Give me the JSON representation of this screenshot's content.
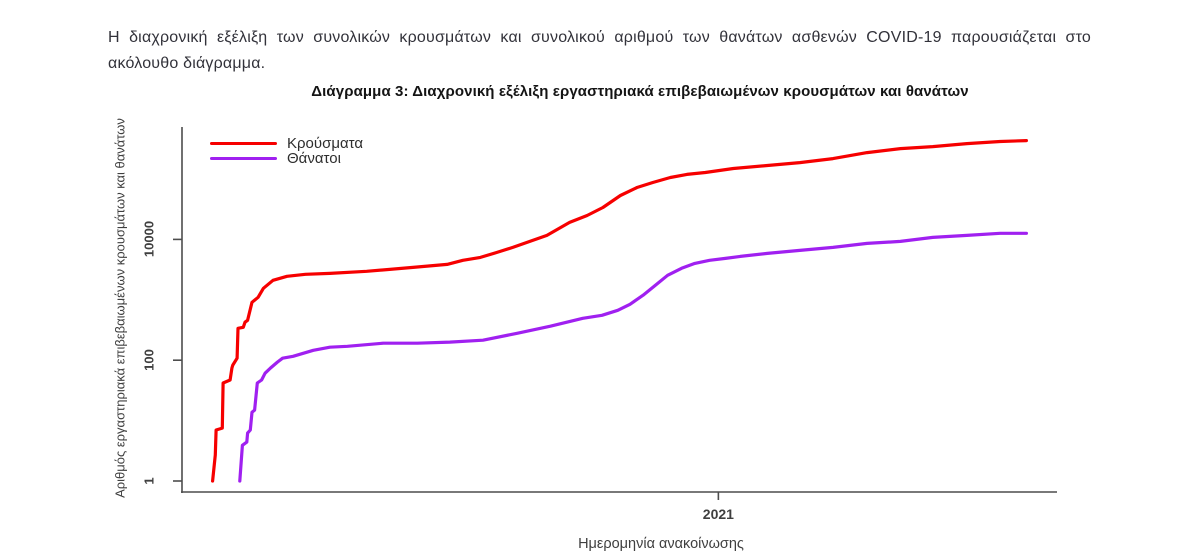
{
  "page": {
    "intro_text": "Η διαχρονική εξέλιξη των συνολικών κρουσμάτων και συνολικού αριθμού των θανάτων ασθενών COVID-19 παρουσιάζεται στο ακόλουθο διάγραμμα."
  },
  "chart_data": {
    "type": "line",
    "title": "Διάγραμμα 3: Διαχρονική εξέλιξη εργαστηριακά επιβεβαιωμένων κρουσμάτων και θανάτων",
    "xlabel": "Ημερομηνία ανακοίνωσης",
    "ylabel": "Αριθμός εργαστηριακά επιβεβαιωμένων κρουσμάτων και θανάτων",
    "y_axis": {
      "scale": "log10",
      "ticks": [
        1,
        100,
        10000
      ],
      "range": [
        1,
        700000
      ],
      "grid": false
    },
    "x_axis": {
      "unit": "fraction of plot width (time axis, ~Feb 2020 to ~Jul 2021)",
      "ticks": [
        {
          "label": "2021",
          "t": 0.613
        }
      ]
    },
    "legend_position": "top-left inside plot",
    "axis_color": "#4d4d4d",
    "series": [
      {
        "key": "cases",
        "name": "Κρούσματα",
        "color": "#f60000",
        "points": [
          [
            0.035,
            1
          ],
          [
            0.038,
            2.7
          ],
          [
            0.039,
            7
          ],
          [
            0.046,
            7.5
          ],
          [
            0.047,
            42
          ],
          [
            0.055,
            47
          ],
          [
            0.057,
            74
          ],
          [
            0.058,
            83
          ],
          [
            0.063,
            108
          ],
          [
            0.064,
            338
          ],
          [
            0.07,
            351
          ],
          [
            0.072,
            425
          ],
          [
            0.075,
            458
          ],
          [
            0.08,
            910
          ],
          [
            0.087,
            1100
          ],
          [
            0.093,
            1550
          ],
          [
            0.104,
            2100
          ],
          [
            0.12,
            2450
          ],
          [
            0.141,
            2640
          ],
          [
            0.169,
            2740
          ],
          [
            0.211,
            2960
          ],
          [
            0.264,
            3440
          ],
          [
            0.303,
            3860
          ],
          [
            0.321,
            4500
          ],
          [
            0.341,
            5040
          ],
          [
            0.36,
            6100
          ],
          [
            0.378,
            7380
          ],
          [
            0.417,
            11650
          ],
          [
            0.443,
            19100
          ],
          [
            0.463,
            24900
          ],
          [
            0.481,
            33800
          ],
          [
            0.501,
            53300
          ],
          [
            0.52,
            72400
          ],
          [
            0.538,
            87500
          ],
          [
            0.558,
            106000
          ],
          [
            0.577,
            119000
          ],
          [
            0.598,
            128000
          ],
          [
            0.63,
            149000
          ],
          [
            0.669,
            167000
          ],
          [
            0.706,
            187000
          ],
          [
            0.744,
            218000
          ],
          [
            0.783,
            274000
          ],
          [
            0.821,
            319000
          ],
          [
            0.858,
            344000
          ],
          [
            0.897,
            386000
          ],
          [
            0.935,
            417000
          ],
          [
            0.965,
            433000
          ]
        ]
      },
      {
        "key": "deaths",
        "name": "Θάνατοι",
        "color": "#a020f0",
        "points": [
          [
            0.066,
            1
          ],
          [
            0.069,
            3.9
          ],
          [
            0.074,
            4.4
          ],
          [
            0.075,
            6.2
          ],
          [
            0.078,
            7
          ],
          [
            0.08,
            13.8
          ],
          [
            0.083,
            14.9
          ],
          [
            0.086,
            42
          ],
          [
            0.091,
            47
          ],
          [
            0.095,
            61
          ],
          [
            0.101,
            74
          ],
          [
            0.109,
            93
          ],
          [
            0.115,
            108
          ],
          [
            0.127,
            116
          ],
          [
            0.15,
            146
          ],
          [
            0.169,
            164
          ],
          [
            0.189,
            170
          ],
          [
            0.23,
            191
          ],
          [
            0.269,
            191
          ],
          [
            0.306,
            199
          ],
          [
            0.344,
            214
          ],
          [
            0.383,
            279
          ],
          [
            0.421,
            365
          ],
          [
            0.458,
            494
          ],
          [
            0.48,
            554
          ],
          [
            0.498,
            670
          ],
          [
            0.512,
            843
          ],
          [
            0.527,
            1190
          ],
          [
            0.541,
            1740
          ],
          [
            0.555,
            2540
          ],
          [
            0.571,
            3320
          ],
          [
            0.586,
            4010
          ],
          [
            0.603,
            4500
          ],
          [
            0.621,
            4850
          ],
          [
            0.638,
            5240
          ],
          [
            0.669,
            5870
          ],
          [
            0.706,
            6580
          ],
          [
            0.744,
            7380
          ],
          [
            0.783,
            8590
          ],
          [
            0.821,
            9270
          ],
          [
            0.858,
            10800
          ],
          [
            0.897,
            11650
          ],
          [
            0.935,
            12600
          ],
          [
            0.965,
            12600
          ]
        ]
      }
    ]
  }
}
